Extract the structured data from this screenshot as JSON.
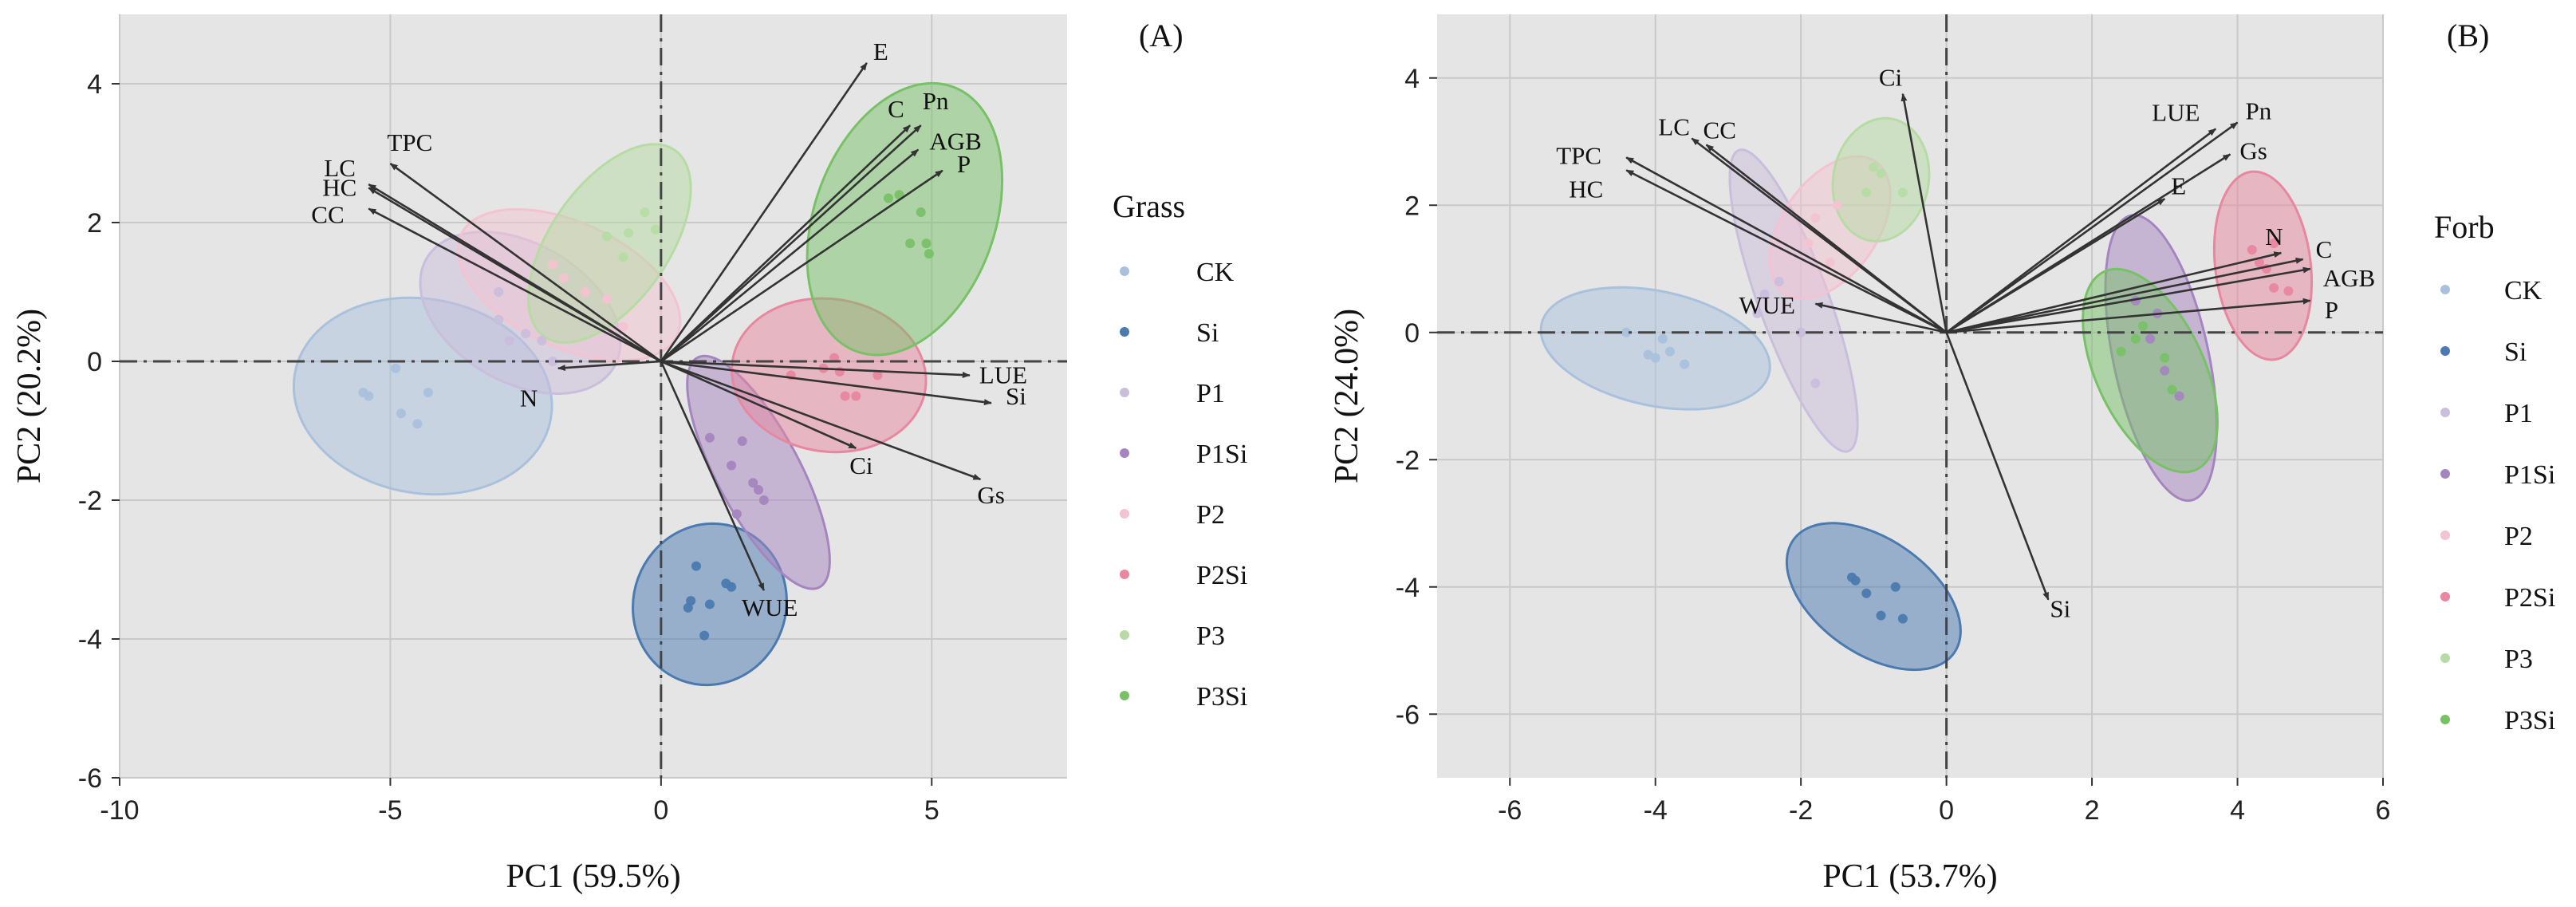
{
  "chart_data": [
    {
      "type": "scatter",
      "panel_label": "(A)",
      "xlabel": "PC1 (59.5%)",
      "ylabel": "PC2 (20.2%)",
      "xlim": [
        -10,
        7.5
      ],
      "ylim": [
        -6,
        5
      ],
      "xticks": [
        -10,
        -5,
        0,
        5
      ],
      "yticks": [
        -6,
        -4,
        -2,
        0,
        2,
        4
      ],
      "grid": true,
      "legend_title": "Grass",
      "legend_position": "right",
      "groups": [
        {
          "name": "CK",
          "color": "#a9c1dc",
          "points": [
            [
              -5.5,
              -0.45
            ],
            [
              -5.4,
              -0.5
            ],
            [
              -4.9,
              -0.1
            ],
            [
              -4.8,
              -0.75
            ],
            [
              -4.5,
              -0.9
            ],
            [
              -4.3,
              -0.45
            ]
          ],
          "ellipse": {
            "cx": -4.4,
            "cy": -0.5,
            "rx": 2.4,
            "ry": 1.4,
            "angle": -10
          }
        },
        {
          "name": "Si",
          "color": "#4a7ab0",
          "points": [
            [
              0.5,
              -3.55
            ],
            [
              0.55,
              -3.45
            ],
            [
              0.65,
              -2.95
            ],
            [
              1.2,
              -3.2
            ],
            [
              1.3,
              -3.25
            ],
            [
              0.8,
              -3.95
            ],
            [
              0.9,
              -3.5
            ]
          ],
          "ellipse": {
            "cx": 0.9,
            "cy": -3.5,
            "rx": 1.5,
            "ry": 1.1,
            "angle": 70
          }
        },
        {
          "name": "P1",
          "color": "#c9bedc",
          "points": [
            [
              -3.0,
              0.6
            ],
            [
              -3.0,
              1.0
            ],
            [
              -2.8,
              0.3
            ],
            [
              -2.5,
              0.4
            ],
            [
              -2.2,
              0.3
            ],
            [
              -2.0,
              0.0
            ]
          ],
          "ellipse": {
            "cx": -2.6,
            "cy": 0.7,
            "rx": 2.0,
            "ry": 1.0,
            "angle": -30
          }
        },
        {
          "name": "P1Si",
          "color": "#a585bf",
          "points": [
            [
              0.9,
              -1.1
            ],
            [
              1.3,
              -1.5
            ],
            [
              1.5,
              -1.15
            ],
            [
              1.7,
              -1.75
            ],
            [
              1.8,
              -1.85
            ],
            [
              1.9,
              -2.0
            ],
            [
              1.4,
              -2.2
            ]
          ],
          "ellipse": {
            "cx": 1.8,
            "cy": -1.6,
            "rx": 2.4,
            "ry": 0.6,
            "angle": -62
          }
        },
        {
          "name": "P2",
          "color": "#f3c3d1",
          "points": [
            [
              -2.0,
              1.4
            ],
            [
              -1.8,
              1.2
            ],
            [
              -1.4,
              1.0
            ],
            [
              -1.0,
              0.9
            ],
            [
              -0.7,
              0.5
            ]
          ],
          "ellipse": {
            "cx": -1.7,
            "cy": 1.1,
            "rx": 2.2,
            "ry": 0.9,
            "angle": -25
          }
        },
        {
          "name": "P2Si",
          "color": "#e8879f",
          "points": [
            [
              2.4,
              -0.2
            ],
            [
              3.0,
              -0.1
            ],
            [
              3.2,
              0.05
            ],
            [
              3.3,
              -0.15
            ],
            [
              3.4,
              -0.5
            ],
            [
              3.6,
              -0.5
            ],
            [
              4.0,
              -0.2
            ]
          ],
          "ellipse": {
            "cx": 3.1,
            "cy": -0.2,
            "rx": 1.8,
            "ry": 1.1,
            "angle": -8
          }
        },
        {
          "name": "P3",
          "color": "#b6dca4",
          "points": [
            [
              -1.0,
              1.8
            ],
            [
              -0.6,
              1.85
            ],
            [
              -0.3,
              2.15
            ],
            [
              -0.7,
              1.5
            ],
            [
              -0.1,
              1.9
            ]
          ],
          "ellipse": {
            "cx": -0.95,
            "cy": 1.7,
            "rx": 2.1,
            "ry": 0.85,
            "angle": 55
          }
        },
        {
          "name": "P3Si",
          "color": "#78c167",
          "points": [
            [
              4.2,
              2.35
            ],
            [
              4.4,
              2.4
            ],
            [
              4.6,
              1.7
            ],
            [
              4.8,
              2.15
            ],
            [
              4.9,
              1.7
            ],
            [
              4.95,
              1.55
            ]
          ],
          "ellipse": {
            "cx": 4.5,
            "cy": 2.05,
            "rx": 2.6,
            "ry": 1.3,
            "angle": 70
          }
        }
      ],
      "loadings": [
        {
          "label": "E",
          "x": 3.8,
          "y": 4.3
        },
        {
          "label": "C",
          "x": 4.6,
          "y": 3.4
        },
        {
          "label": "Pn",
          "x": 4.8,
          "y": 3.4
        },
        {
          "label": "AGB",
          "x": 4.75,
          "y": 3.05
        },
        {
          "label": "P",
          "x": 5.2,
          "y": 2.75
        },
        {
          "label": "TPC",
          "x": -5.0,
          "y": 2.85
        },
        {
          "label": "LC",
          "x": -5.4,
          "y": 2.55
        },
        {
          "label": "HC",
          "x": -5.4,
          "y": 2.5
        },
        {
          "label": "CC",
          "x": -5.4,
          "y": 2.2
        },
        {
          "label": "N",
          "x": -1.9,
          "y": -0.1
        },
        {
          "label": "LUE",
          "x": 5.7,
          "y": -0.2
        },
        {
          "label": "Si",
          "x": 6.1,
          "y": -0.6
        },
        {
          "label": "Ci",
          "x": 3.6,
          "y": -1.25
        },
        {
          "label": "Gs",
          "x": 5.9,
          "y": -1.7
        },
        {
          "label": "WUE",
          "x": 1.9,
          "y": -3.3
        }
      ]
    },
    {
      "type": "scatter",
      "panel_label": "(B)",
      "xlabel": "PC1 (53.7%)",
      "ylabel": "PC2 (24.0%)",
      "xlim": [
        -7,
        6
      ],
      "ylim": [
        -7,
        5
      ],
      "xticks": [
        -6,
        -4,
        -2,
        0,
        2,
        4,
        6
      ],
      "yticks": [
        -6,
        -4,
        -2,
        0,
        2,
        4
      ],
      "grid": true,
      "legend_title": "Forb",
      "legend_position": "right",
      "groups": [
        {
          "name": "CK",
          "color": "#a9c1dc",
          "points": [
            [
              -4.4,
              0.0
            ],
            [
              -4.1,
              -0.35
            ],
            [
              -4.0,
              -0.4
            ],
            [
              -3.9,
              -0.1
            ],
            [
              -3.8,
              -0.3
            ],
            [
              -3.6,
              -0.5
            ]
          ],
          "ellipse": {
            "cx": -4.0,
            "cy": -0.25,
            "rx": 1.6,
            "ry": 0.9,
            "angle": -12
          }
        },
        {
          "name": "Si",
          "color": "#4a7ab0",
          "points": [
            [
              -1.3,
              -3.85
            ],
            [
              -1.1,
              -4.1
            ],
            [
              -0.9,
              -4.45
            ],
            [
              -0.7,
              -4.0
            ],
            [
              -0.6,
              -4.5
            ],
            [
              -1.25,
              -3.9
            ]
          ],
          "ellipse": {
            "cx": -1.0,
            "cy": -4.15,
            "rx": 1.35,
            "ry": 0.9,
            "angle": -35
          }
        },
        {
          "name": "P1",
          "color": "#c9bedc",
          "points": [
            [
              -2.5,
              0.6
            ],
            [
              -2.3,
              0.8
            ],
            [
              -2.6,
              0.3
            ],
            [
              -2.0,
              0.0
            ],
            [
              -1.8,
              -0.8
            ]
          ],
          "ellipse": {
            "cx": -2.1,
            "cy": 0.5,
            "rx": 2.2,
            "ry": 0.55,
            "angle": -70
          }
        },
        {
          "name": "P1Si",
          "color": "#a585bf",
          "points": [
            [
              2.6,
              0.5
            ],
            [
              2.8,
              -0.1
            ],
            [
              3.0,
              -0.6
            ],
            [
              3.2,
              -1.0
            ],
            [
              2.9,
              0.3
            ]
          ],
          "ellipse": {
            "cx": 2.95,
            "cy": -0.4,
            "rx": 2.0,
            "ry": 0.75,
            "angle": -78
          }
        },
        {
          "name": "P2",
          "color": "#f3c3d1",
          "points": [
            [
              -1.9,
              1.4
            ],
            [
              -1.8,
              1.8
            ],
            [
              -1.6,
              1.1
            ],
            [
              -1.5,
              2.0
            ]
          ],
          "ellipse": {
            "cx": -1.6,
            "cy": 1.65,
            "rx": 1.1,
            "ry": 0.75,
            "angle": 55
          }
        },
        {
          "name": "P2Si",
          "color": "#e8879f",
          "points": [
            [
              4.2,
              1.3
            ],
            [
              4.4,
              1.0
            ],
            [
              4.5,
              0.7
            ],
            [
              4.7,
              0.65
            ],
            [
              4.3,
              1.1
            ],
            [
              4.5,
              1.4
            ]
          ],
          "ellipse": {
            "cx": 4.35,
            "cy": 1.05,
            "rx": 1.3,
            "ry": 0.75,
            "angle": -83
          }
        },
        {
          "name": "P3",
          "color": "#b6dca4",
          "points": [
            [
              -1.1,
              2.2
            ],
            [
              -1.0,
              2.6
            ],
            [
              -0.9,
              2.5
            ],
            [
              -0.6,
              2.2
            ]
          ],
          "ellipse": {
            "cx": -0.9,
            "cy": 2.4,
            "rx": 0.85,
            "ry": 0.75,
            "angle": 80
          }
        },
        {
          "name": "P3Si",
          "color": "#78c167",
          "points": [
            [
              2.4,
              -0.3
            ],
            [
              2.6,
              -0.1
            ],
            [
              2.7,
              0.1
            ],
            [
              3.0,
              -0.4
            ],
            [
              3.1,
              -0.9
            ]
          ],
          "ellipse": {
            "cx": 2.8,
            "cy": -0.6,
            "rx": 1.5,
            "ry": 0.85,
            "angle": -65
          }
        }
      ],
      "loadings": [
        {
          "label": "Ci",
          "x": -0.6,
          "y": 3.75
        },
        {
          "label": "LC",
          "x": -3.5,
          "y": 3.05
        },
        {
          "label": "CC",
          "x": -3.3,
          "y": 2.95
        },
        {
          "label": "TPC",
          "x": -4.4,
          "y": 2.75
        },
        {
          "label": "HC",
          "x": -4.4,
          "y": 2.55
        },
        {
          "label": "WUE",
          "x": -1.8,
          "y": 0.45
        },
        {
          "label": "Si",
          "x": 1.4,
          "y": -4.2
        },
        {
          "label": "LUE",
          "x": 3.7,
          "y": 3.2
        },
        {
          "label": "Pn",
          "x": 4.0,
          "y": 3.3
        },
        {
          "label": "Gs",
          "x": 3.9,
          "y": 2.8
        },
        {
          "label": "E",
          "x": 3.0,
          "y": 2.1
        },
        {
          "label": "N",
          "x": 4.6,
          "y": 1.25
        },
        {
          "label": "C",
          "x": 4.9,
          "y": 1.15
        },
        {
          "label": "AGB",
          "x": 5.0,
          "y": 1.0
        },
        {
          "label": "P",
          "x": 5.0,
          "y": 0.5
        }
      ]
    }
  ]
}
